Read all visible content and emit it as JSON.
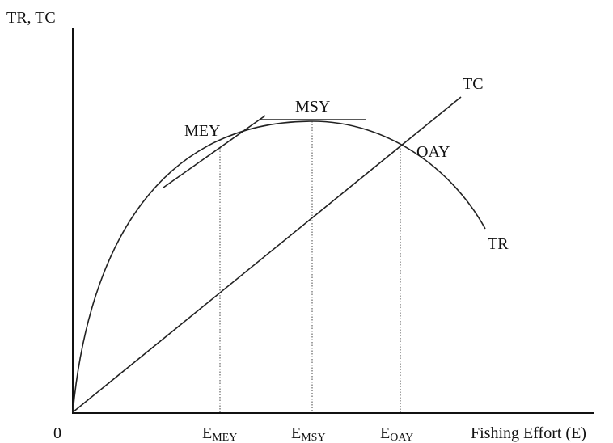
{
  "axes": {
    "y_label": "TR, TC",
    "origin": "0",
    "x_label": "Fishing Effort (E)"
  },
  "curves": {
    "tc": "TC",
    "tr": "TR"
  },
  "points": [
    {
      "label": "MEY",
      "effort": {
        "main": "E",
        "sub": "MEY"
      }
    },
    {
      "label": "MSY",
      "effort": {
        "main": "E",
        "sub": "MSY"
      }
    },
    {
      "label": "OAY",
      "effort": {
        "main": "E",
        "sub": "OAY"
      }
    }
  ]
}
